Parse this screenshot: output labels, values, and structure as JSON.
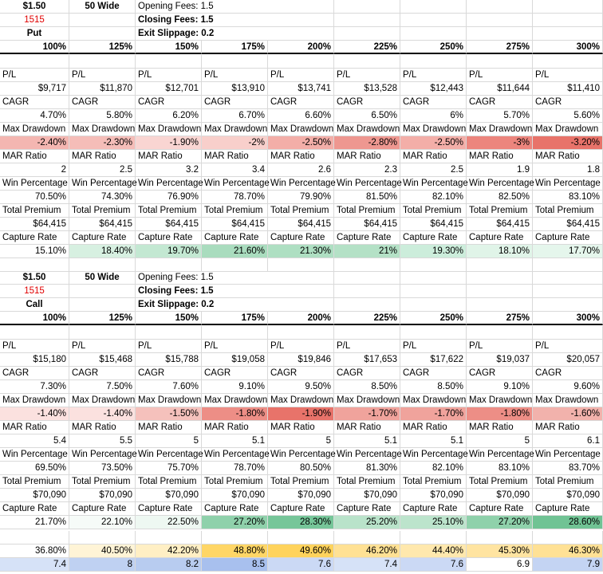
{
  "headers": [
    "100%",
    "125%",
    "150%",
    "175%",
    "200%",
    "225%",
    "250%",
    "275%",
    "300%"
  ],
  "tables": [
    {
      "info": {
        "price": "$1.50",
        "width": "50 Wide",
        "ticker": "1515",
        "type": "Put",
        "opening_fees": "Opening Fees: 1.5",
        "closing_fees": "Closing Fees: 1.5",
        "exit_slippage": "Exit Slippage: 0.2"
      },
      "metrics": [
        {
          "label": "P/L",
          "values": [
            "$9,717",
            "$11,870",
            "$12,701",
            "$13,910",
            "$13,741",
            "$13,528",
            "$12,443",
            "$11,644",
            "$11,410"
          ],
          "colors": []
        },
        {
          "label": "CAGR",
          "values": [
            "4.70%",
            "5.80%",
            "6.20%",
            "6.70%",
            "6.60%",
            "6.50%",
            "6%",
            "5.70%",
            "5.60%"
          ],
          "colors": []
        },
        {
          "label": "Max Drawdown",
          "values": [
            "-2.40%",
            "-2.30%",
            "-1.90%",
            "-2%",
            "-2.50%",
            "-2.80%",
            "-2.50%",
            "-3%",
            "-3.20%"
          ],
          "colors": [
            "#f4b6b1",
            "#f5bdb8",
            "#f9d5d2",
            "#f8cfcb",
            "#f3aea8",
            "#ee9790",
            "#f3aea8",
            "#ec857d",
            "#e8736a"
          ]
        },
        {
          "label": "MAR Ratio",
          "values": [
            "2",
            "2.5",
            "3.2",
            "3.4",
            "2.6",
            "2.3",
            "2.5",
            "1.9",
            "1.8"
          ],
          "colors": []
        },
        {
          "label": "Win Percentage",
          "values": [
            "70.50%",
            "74.30%",
            "76.90%",
            "78.70%",
            "79.90%",
            "81.50%",
            "82.10%",
            "82.50%",
            "83.10%"
          ],
          "colors": []
        },
        {
          "label": "Total Premium",
          "values": [
            "$64,415",
            "$64,415",
            "$64,415",
            "$64,415",
            "$64,415",
            "$64,415",
            "$64,415",
            "$64,415",
            "$64,415"
          ],
          "colors": []
        },
        {
          "label": "Capture Rate",
          "values": [
            "15.10%",
            "18.40%",
            "19.70%",
            "21.60%",
            "21.30%",
            "21%",
            "19.30%",
            "18.10%",
            "17.70%"
          ],
          "colors": [
            "#ffffff",
            "#d7f0e1",
            "#c3e8d2",
            "#a9dcbe",
            "#aedfc2",
            "#b4e1c6",
            "#cceddb",
            "#e0f4e8",
            "#e5f6ec"
          ]
        }
      ]
    },
    {
      "info": {
        "price": "$1.50",
        "width": "50 Wide",
        "ticker": "1515",
        "type": "Call",
        "opening_fees": "Opening Fees: 1.5",
        "closing_fees": "Closing Fees: 1.5",
        "exit_slippage": "Exit Slippage: 0.2"
      },
      "metrics": [
        {
          "label": "P/L",
          "values": [
            "$15,180",
            "$15,468",
            "$15,788",
            "$19,058",
            "$19,846",
            "$17,653",
            "$17,622",
            "$19,037",
            "$20,057"
          ],
          "colors": []
        },
        {
          "label": "CAGR",
          "values": [
            "7.30%",
            "7.50%",
            "7.60%",
            "9.10%",
            "9.50%",
            "8.50%",
            "8.50%",
            "9.10%",
            "9.60%"
          ],
          "colors": []
        },
        {
          "label": "Max Drawdown",
          "values": [
            "-1.40%",
            "-1.40%",
            "-1.50%",
            "-1.80%",
            "-1.90%",
            "-1.70%",
            "-1.70%",
            "-1.80%",
            "-1.60%"
          ],
          "colors": [
            "#fbe1df",
            "#fbe1df",
            "#f5c1bc",
            "#ed8e86",
            "#e8736a",
            "#f0a39c",
            "#f0a39c",
            "#ed8e86",
            "#f2b2ac"
          ]
        },
        {
          "label": "MAR Ratio",
          "values": [
            "5.4",
            "5.5",
            "5",
            "5.1",
            "5",
            "5.1",
            "5.1",
            "5",
            "6.1"
          ],
          "colors": []
        },
        {
          "label": "Win Percentage",
          "values": [
            "69.50%",
            "73.50%",
            "75.70%",
            "78.70%",
            "80.50%",
            "81.30%",
            "82.10%",
            "83.10%",
            "83.70%"
          ],
          "colors": []
        },
        {
          "label": "Total Premium",
          "values": [
            "$70,090",
            "$70,090",
            "$70,090",
            "$70,090",
            "$70,090",
            "$70,090",
            "$70,090",
            "$70,090",
            "$70,090"
          ],
          "colors": []
        },
        {
          "label": "Capture Rate",
          "values": [
            "21.70%",
            "22.10%",
            "22.50%",
            "27.20%",
            "28.30%",
            "25.20%",
            "25.10%",
            "27.20%",
            "28.60%"
          ],
          "colors": [
            "#ffffff",
            "#f6fbf8",
            "#eef8f2",
            "#8fd1ab",
            "#76c699",
            "#b9e3ca",
            "#bce4cc",
            "#8fd1ab",
            "#70c394"
          ]
        }
      ]
    }
  ],
  "summary": [
    {
      "values": [
        "36.80%",
        "40.50%",
        "42.20%",
        "48.80%",
        "49.60%",
        "46.20%",
        "44.40%",
        "45.30%",
        "46.30%"
      ],
      "colors": [
        "#ffffff",
        "#fff4d6",
        "#ffefc4",
        "#ffd666",
        "#ffd35c",
        "#ffe194",
        "#ffe8ad",
        "#ffe4a1",
        "#ffe195"
      ]
    },
    {
      "values": [
        "7.4",
        "8",
        "8.2",
        "8.5",
        "7.6",
        "7.4",
        "7.6",
        "6.9",
        "7.9"
      ],
      "colors": [
        "#d6e2f7",
        "#bfd1f2",
        "#b8ccf0",
        "#a8c0ee",
        "#cbd9f5",
        "#d6e2f7",
        "#cbd9f5",
        "#ffffff",
        "#c4d4f3"
      ]
    }
  ]
}
